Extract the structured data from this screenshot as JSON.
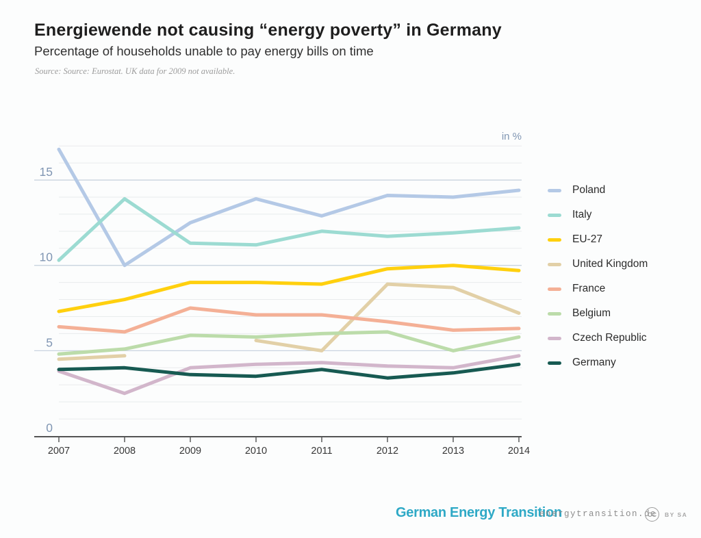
{
  "chart_data": {
    "type": "line",
    "title": "Energiewende not causing “energy poverty” in Germany",
    "subtitle": "Percentage of households unable to pay energy bills on time",
    "source_note": "Source: Source: Eurostat. UK data for 2009 not available.",
    "unit_label": "in %",
    "x": [
      2007,
      2008,
      2009,
      2010,
      2011,
      2012,
      2013,
      2014
    ],
    "y_ticks": [
      0,
      5,
      10,
      15
    ],
    "ylim": [
      0,
      17
    ],
    "grid": "horizontal, minor every 1, major every 5",
    "legend_position": "right",
    "series": [
      {
        "name": "Poland",
        "color": "#b4c9e6",
        "values": [
          16.8,
          10.0,
          12.5,
          13.9,
          12.9,
          14.1,
          14.0,
          14.4
        ]
      },
      {
        "name": "Italy",
        "color": "#9cdbd2",
        "values": [
          10.3,
          13.9,
          11.3,
          11.2,
          12.0,
          11.7,
          11.9,
          12.2
        ]
      },
      {
        "name": "EU-27",
        "color": "#ffd00e",
        "values": [
          7.3,
          8.0,
          9.0,
          9.0,
          8.9,
          9.8,
          10.0,
          9.7
        ]
      },
      {
        "name": "United Kingdom",
        "color": "#e2d0a7",
        "values": [
          4.5,
          4.7,
          null,
          5.6,
          5.0,
          8.9,
          8.7,
          7.2
        ]
      },
      {
        "name": "France",
        "color": "#f4b096",
        "values": [
          6.4,
          6.1,
          7.5,
          7.1,
          7.1,
          6.7,
          6.2,
          6.3
        ]
      },
      {
        "name": "Belgium",
        "color": "#bcdcaa",
        "values": [
          4.8,
          5.1,
          5.9,
          5.8,
          6.0,
          6.1,
          5.0,
          5.8
        ]
      },
      {
        "name": "Czech Republic",
        "color": "#d2b6cb",
        "values": [
          3.8,
          2.5,
          4.0,
          4.2,
          4.3,
          4.1,
          4.0,
          4.7
        ]
      },
      {
        "name": "Germany",
        "color": "#175a52",
        "values": [
          3.9,
          4.0,
          3.6,
          3.5,
          3.9,
          3.4,
          3.7,
          4.2
        ]
      }
    ]
  },
  "footer": {
    "logo_text": "German Energy Transition",
    "site_url": "energytransition.de",
    "cc": "CC",
    "cc_terms": "BY SA"
  }
}
